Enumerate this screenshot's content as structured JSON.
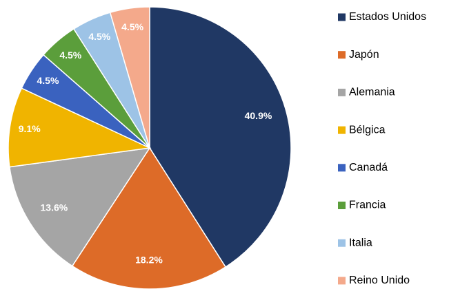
{
  "chart_data": {
    "type": "pie",
    "categories": [
      "Estados Unidos",
      "Japón",
      "Alemania",
      "Bélgica",
      "Canadá",
      "Francia",
      "Italia",
      "Reino Unido"
    ],
    "values": [
      40.9,
      18.2,
      13.6,
      9.1,
      4.5,
      4.5,
      4.5,
      4.5
    ],
    "value_labels": [
      "40.9%",
      "18.2%",
      "13.6%",
      "9.1%",
      "4.5%",
      "4.5%",
      "4.5%",
      "4.5%"
    ],
    "colors": [
      "#203864",
      "#dd6b28",
      "#a5a5a5",
      "#f0b400",
      "#3a62bf",
      "#5b9e3b",
      "#9dc3e6",
      "#f4a98b"
    ],
    "legend": "right"
  }
}
